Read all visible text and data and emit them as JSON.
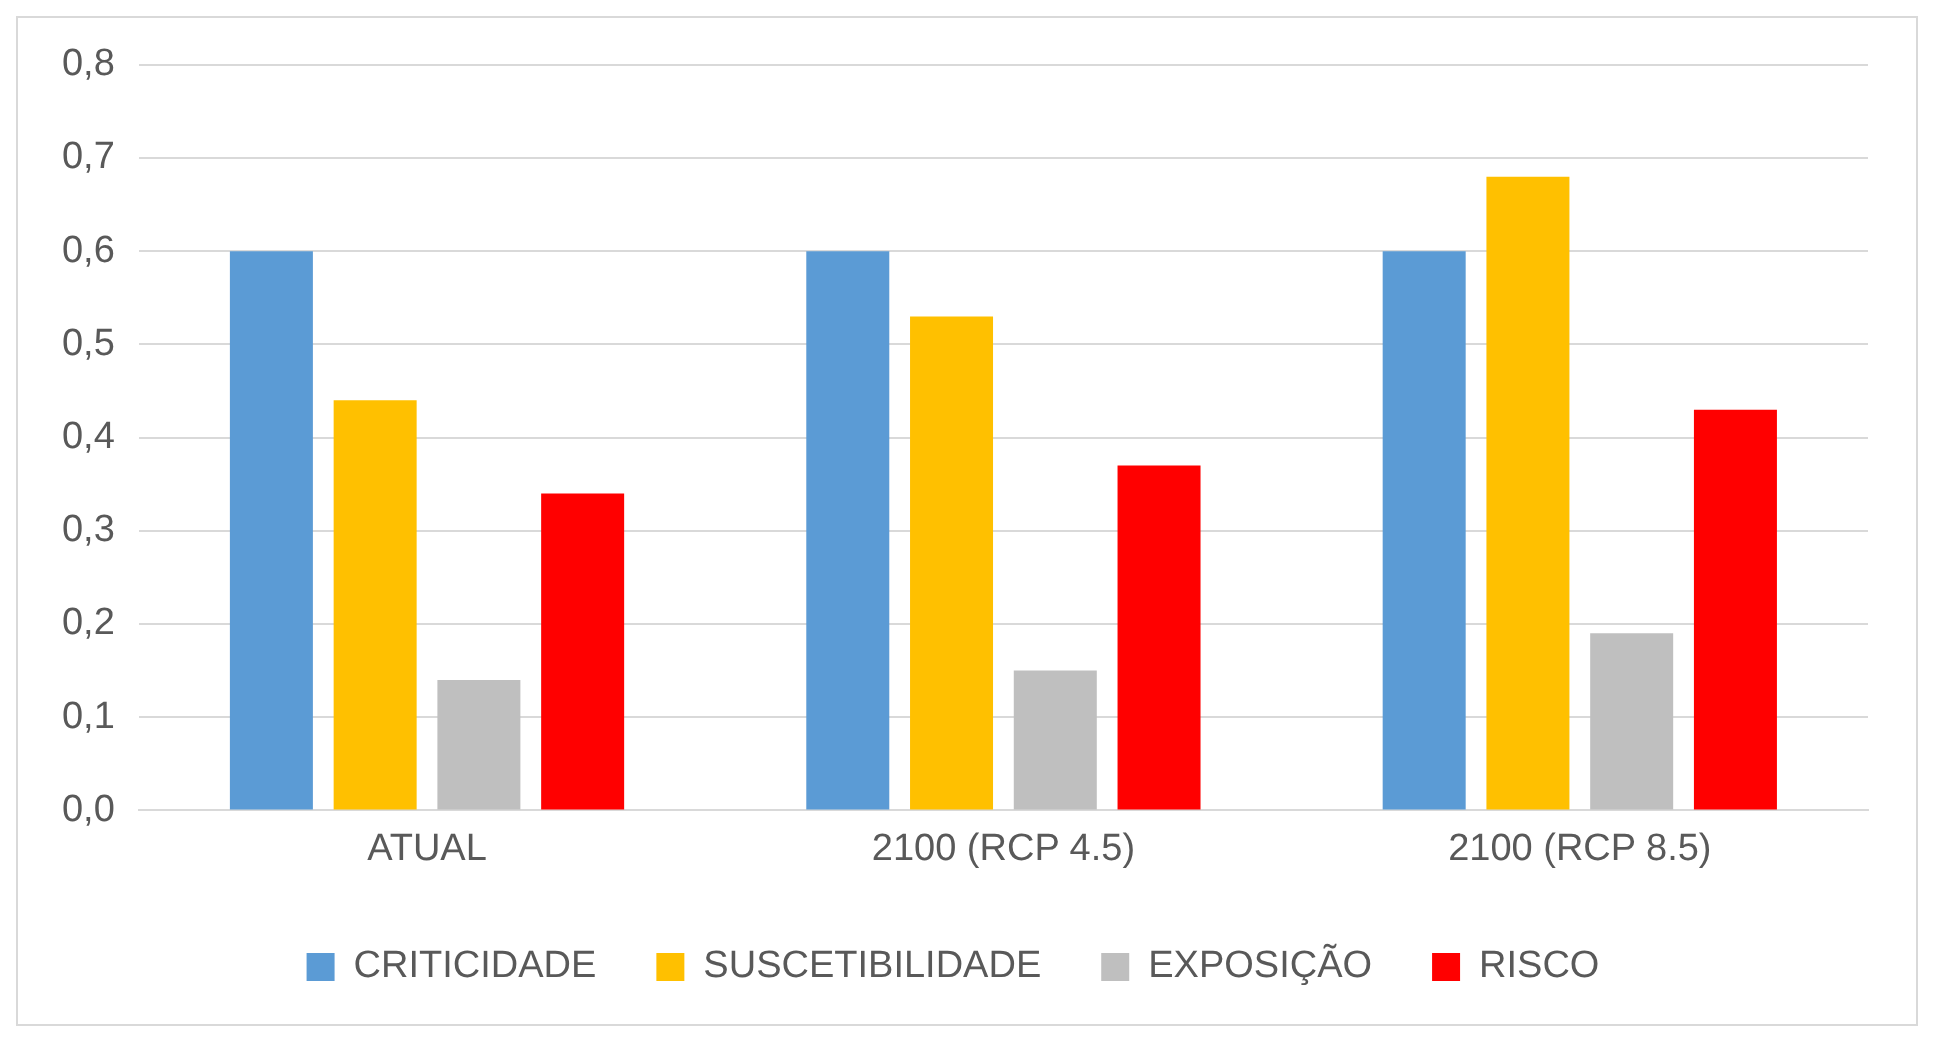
{
  "chart_data": {
    "type": "bar",
    "categories": [
      "ATUAL",
      "2100 (RCP 4.5)",
      "2100 (RCP 8.5)"
    ],
    "series": [
      {
        "name": "CRITICIDADE",
        "color": "#5b9bd5",
        "values": [
          0.6,
          0.6,
          0.6
        ]
      },
      {
        "name": "SUSCETIBILIDADE",
        "color": "#ffc000",
        "values": [
          0.44,
          0.53,
          0.68
        ]
      },
      {
        "name": "EXPOSIÇÃO",
        "color": "#bfbfbf",
        "values": [
          0.14,
          0.15,
          0.19
        ]
      },
      {
        "name": "RISCO",
        "color": "#ff0000",
        "values": [
          0.34,
          0.37,
          0.43
        ]
      }
    ],
    "ylim": [
      0,
      0.8
    ],
    "yticks": [
      {
        "value": 0,
        "label": "0,0"
      },
      {
        "value": 0.1,
        "label": "0,1"
      },
      {
        "value": 0.2,
        "label": "0,2"
      },
      {
        "value": 0.3,
        "label": "0,3"
      },
      {
        "value": 0.4,
        "label": "0,4"
      },
      {
        "value": 0.5,
        "label": "0,5"
      },
      {
        "value": 0.6,
        "label": "0,6"
      },
      {
        "value": 0.7,
        "label": "0,7"
      },
      {
        "value": 0.8,
        "label": "0,8"
      }
    ],
    "grid": "y",
    "legend": "bottom"
  }
}
